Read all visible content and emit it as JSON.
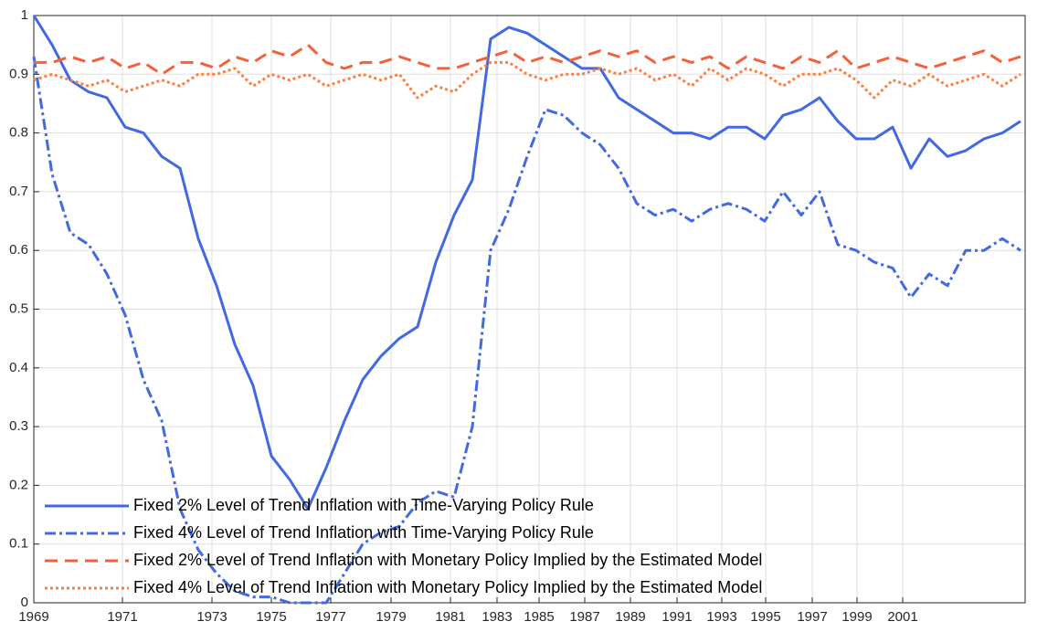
{
  "chart_data": {
    "type": "line",
    "x": [
      0,
      2,
      4,
      6,
      8,
      10,
      12,
      14,
      16,
      18,
      20,
      22,
      24,
      26,
      28,
      30,
      32,
      34,
      36,
      38,
      40,
      42,
      44,
      46,
      48,
      50,
      52,
      54,
      56,
      58,
      60,
      62,
      64,
      66,
      68,
      70,
      72,
      74,
      76,
      78,
      80,
      82,
      84,
      86,
      88,
      90,
      92,
      94,
      96,
      98,
      100,
      102,
      104,
      106,
      108
    ],
    "xlim": [
      0,
      108.5
    ],
    "xticks": [
      {
        "value": 0,
        "label": "1969"
      },
      {
        "value": 9.7,
        "label": "1971"
      },
      {
        "value": 19.5,
        "label": "1973"
      },
      {
        "value": 26,
        "label": "1975"
      },
      {
        "value": 32.5,
        "label": "1977"
      },
      {
        "value": 39.1,
        "label": "1979"
      },
      {
        "value": 45.6,
        "label": "1981"
      },
      {
        "value": 50.7,
        "label": "1983"
      },
      {
        "value": 55.3,
        "label": "1985"
      },
      {
        "value": 60.3,
        "label": "1987"
      },
      {
        "value": 65.3,
        "label": "1989"
      },
      {
        "value": 70.4,
        "label": "1991"
      },
      {
        "value": 75.3,
        "label": "1993"
      },
      {
        "value": 80.1,
        "label": "1995"
      },
      {
        "value": 85.2,
        "label": "1997"
      },
      {
        "value": 90.1,
        "label": "1999"
      },
      {
        "value": 95.1,
        "label": "2001"
      }
    ],
    "ylim": [
      0,
      1
    ],
    "yticks": [
      0,
      0.1,
      0.2,
      0.3,
      0.4,
      0.5,
      0.6,
      0.7,
      0.8,
      0.9,
      1
    ],
    "grid": true,
    "legend": "lower left",
    "series": [
      {
        "name": "Fixed 2% Level of Trend Inflation with Time-Varying Policy Rule",
        "color": "#4169e1",
        "style": "solid",
        "values": [
          1.0,
          0.95,
          0.89,
          0.87,
          0.86,
          0.81,
          0.8,
          0.76,
          0.74,
          0.62,
          0.54,
          0.44,
          0.37,
          0.25,
          0.21,
          0.16,
          0.23,
          0.31,
          0.38,
          0.42,
          0.45,
          0.47,
          0.58,
          0.66,
          0.72,
          0.96,
          0.98,
          0.97,
          0.95,
          0.93,
          0.91,
          0.91,
          0.86,
          0.84,
          0.82,
          0.8,
          0.8,
          0.79,
          0.81,
          0.81,
          0.79,
          0.83,
          0.84,
          0.86,
          0.82,
          0.79,
          0.79,
          0.81,
          0.74,
          0.79,
          0.76,
          0.77,
          0.79,
          0.8,
          0.82
        ]
      },
      {
        "name": "Fixed 4% Level of Trend Inflation with Time-Varying Policy Rule",
        "color": "#4169e1",
        "style": "dashdot",
        "values": [
          0.93,
          0.73,
          0.63,
          0.61,
          0.56,
          0.49,
          0.38,
          0.31,
          0.16,
          0.09,
          0.05,
          0.02,
          0.01,
          0.01,
          0.0,
          0.0,
          0.0,
          0.05,
          0.1,
          0.12,
          0.13,
          0.17,
          0.19,
          0.18,
          0.3,
          0.6,
          0.67,
          0.76,
          0.84,
          0.83,
          0.8,
          0.78,
          0.74,
          0.68,
          0.66,
          0.67,
          0.65,
          0.67,
          0.68,
          0.67,
          0.65,
          0.7,
          0.66,
          0.7,
          0.61,
          0.6,
          0.58,
          0.57,
          0.52,
          0.56,
          0.54,
          0.6,
          0.6,
          0.62,
          0.6
        ]
      },
      {
        "name": "Fixed 2% Level of Trend Inflation with Monetary Policy Implied by the Estimated Model",
        "color": "#f4603c",
        "style": "dashed",
        "values": [
          0.92,
          0.92,
          0.93,
          0.92,
          0.93,
          0.91,
          0.92,
          0.9,
          0.92,
          0.92,
          0.91,
          0.93,
          0.92,
          0.94,
          0.93,
          0.95,
          0.92,
          0.91,
          0.92,
          0.92,
          0.93,
          0.92,
          0.91,
          0.91,
          0.92,
          0.93,
          0.94,
          0.92,
          0.93,
          0.92,
          0.93,
          0.94,
          0.93,
          0.94,
          0.92,
          0.93,
          0.92,
          0.93,
          0.91,
          0.93,
          0.92,
          0.91,
          0.93,
          0.92,
          0.94,
          0.91,
          0.92,
          0.93,
          0.92,
          0.91,
          0.92,
          0.93,
          0.94,
          0.92,
          0.93
        ]
      },
      {
        "name": "Fixed 4% Level of Trend Inflation with Monetary Policy Implied by the Estimated Model",
        "color": "#ff7f3f",
        "style": "dotted",
        "values": [
          0.89,
          0.9,
          0.89,
          0.88,
          0.89,
          0.87,
          0.88,
          0.89,
          0.88,
          0.9,
          0.9,
          0.91,
          0.88,
          0.9,
          0.89,
          0.9,
          0.88,
          0.89,
          0.9,
          0.89,
          0.9,
          0.86,
          0.88,
          0.87,
          0.9,
          0.92,
          0.92,
          0.9,
          0.89,
          0.9,
          0.9,
          0.91,
          0.9,
          0.91,
          0.89,
          0.9,
          0.88,
          0.91,
          0.89,
          0.91,
          0.9,
          0.88,
          0.9,
          0.9,
          0.91,
          0.89,
          0.86,
          0.89,
          0.88,
          0.9,
          0.88,
          0.89,
          0.9,
          0.88,
          0.9
        ]
      }
    ]
  }
}
